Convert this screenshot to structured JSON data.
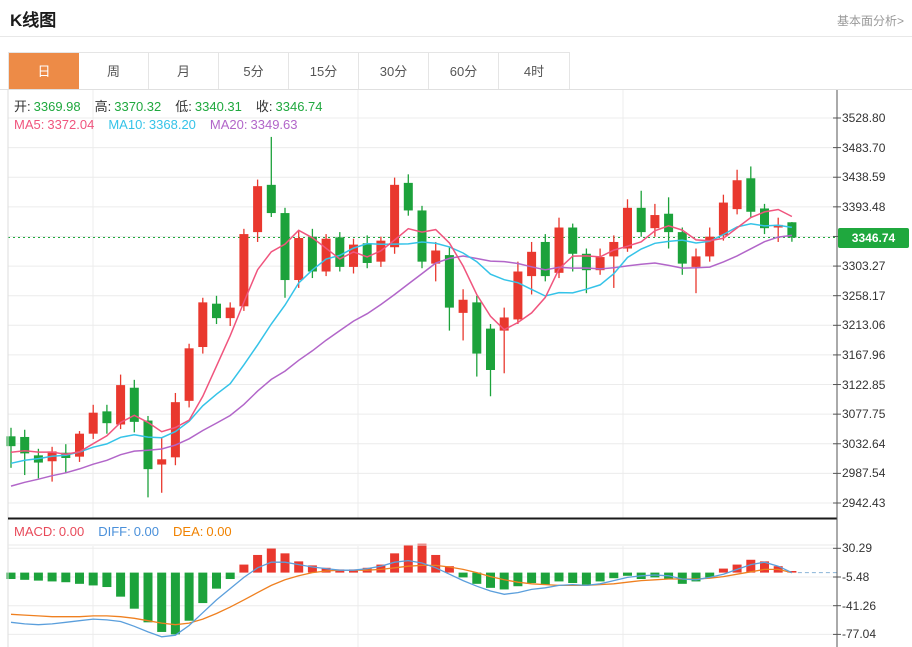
{
  "header": {
    "title": "K线图",
    "link": "基本面分析>"
  },
  "tabs": {
    "items": [
      "日",
      "周",
      "月",
      "5分",
      "15分",
      "30分",
      "60分",
      "4时"
    ],
    "active_index": 0
  },
  "ohlc_legend": [
    {
      "label": "开:",
      "value": "3369.98"
    },
    {
      "label": "高:",
      "value": "3370.32"
    },
    {
      "label": "低:",
      "value": "3340.31"
    },
    {
      "label": "收:",
      "value": "3346.74"
    }
  ],
  "ma_legend": [
    {
      "label": "MA5:",
      "value": "3372.04",
      "color": "#f0557e"
    },
    {
      "label": "MA10:",
      "value": "3368.20",
      "color": "#35c3e8"
    },
    {
      "label": "MA20:",
      "value": "3349.63",
      "color": "#b266c9"
    }
  ],
  "macd_legend": [
    {
      "label": "MACD:",
      "value": "0.00",
      "color": "#e84a5a"
    },
    {
      "label": "DIFF:",
      "value": "0.00",
      "color": "#4a90da"
    },
    {
      "label": "DEA:",
      "value": "0.00",
      "color": "#f08200"
    }
  ],
  "price_axis": {
    "labels": [
      "3528.80",
      "3483.70",
      "3438.59",
      "3393.48",
      "3303.27",
      "3258.17",
      "3213.06",
      "3167.96",
      "3122.85",
      "3077.75",
      "3032.64",
      "2987.54",
      "2942.43"
    ],
    "current": "3346.74"
  },
  "macd_axis": {
    "labels": [
      "30.29",
      "-5.48",
      "-41.26",
      "-77.04"
    ]
  },
  "colors": {
    "up": "#e9382e",
    "down": "#1ca23b",
    "ma5": "#f0557e",
    "ma10": "#35c3e8",
    "ma20": "#b266c9",
    "diff_line": "#5b9fdc",
    "dea_line": "#ef8020",
    "tab_active": "#ed8b47",
    "price_green": "#1fa83e",
    "grid": "#ececec",
    "axis": "#555555",
    "dotted_price_line": "#21a83e",
    "dashed_zero_line": "#8ab4d8"
  },
  "chart_data": {
    "type": "candlestick+macd",
    "title": "K线图",
    "timeframe": "日",
    "legend_values": {
      "open": 3369.98,
      "high": 3370.32,
      "low": 3340.31,
      "close": 3346.74,
      "MA5": 3372.04,
      "MA10": 3368.2,
      "MA20": 3349.63,
      "MACD": 0.0,
      "DIFF": 0.0,
      "DEA": 0.0
    },
    "current_price": 3346.74,
    "y_ticks": [
      3528.8,
      3483.7,
      3438.59,
      3393.48,
      3303.27,
      3258.17,
      3213.06,
      3167.96,
      3122.85,
      3077.75,
      3032.64,
      2987.54,
      2942.43
    ],
    "macd_ticks": [
      30.29,
      -5.48,
      -41.26,
      -77.04
    ],
    "candles": [
      [
        3044,
        3057,
        2996,
        3029
      ],
      [
        3043,
        3054,
        2985,
        3018
      ],
      [
        3015,
        3025,
        2980,
        3004
      ],
      [
        3006,
        3028,
        2975,
        3021
      ],
      [
        3019,
        3032,
        2988,
        3011
      ],
      [
        3013,
        3052,
        3005,
        3048
      ],
      [
        3048,
        3092,
        3040,
        3080
      ],
      [
        3082,
        3092,
        3048,
        3064
      ],
      [
        3062,
        3138,
        3055,
        3122
      ],
      [
        3118,
        3130,
        3050,
        3066
      ],
      [
        3068,
        3075,
        2951,
        2994
      ],
      [
        3001,
        3042,
        2958,
        3009
      ],
      [
        3012,
        3110,
        3000,
        3096
      ],
      [
        3098,
        3185,
        3088,
        3178
      ],
      [
        3180,
        3255,
        3170,
        3248
      ],
      [
        3246,
        3258,
        3215,
        3224
      ],
      [
        3224,
        3248,
        3212,
        3240
      ],
      [
        3242,
        3360,
        3235,
        3352
      ],
      [
        3355,
        3435,
        3340,
        3425
      ],
      [
        3427,
        3500,
        3378,
        3384
      ],
      [
        3384,
        3392,
        3255,
        3282
      ],
      [
        3282,
        3356,
        3270,
        3346
      ],
      [
        3348,
        3360,
        3285,
        3295
      ],
      [
        3295,
        3352,
        3288,
        3345
      ],
      [
        3347,
        3355,
        3295,
        3302
      ],
      [
        3302,
        3345,
        3292,
        3336
      ],
      [
        3338,
        3350,
        3300,
        3308
      ],
      [
        3310,
        3348,
        3302,
        3342
      ],
      [
        3332,
        3438,
        3322,
        3427
      ],
      [
        3430,
        3443,
        3380,
        3388
      ],
      [
        3388,
        3395,
        3300,
        3310
      ],
      [
        3307,
        3340,
        3280,
        3327
      ],
      [
        3320,
        3332,
        3205,
        3240
      ],
      [
        3232,
        3268,
        3190,
        3252
      ],
      [
        3248,
        3258,
        3135,
        3170
      ],
      [
        3208,
        3215,
        3105,
        3145
      ],
      [
        3205,
        3240,
        3140,
        3225
      ],
      [
        3222,
        3310,
        3215,
        3295
      ],
      [
        3288,
        3340,
        3260,
        3325
      ],
      [
        3340,
        3352,
        3280,
        3288
      ],
      [
        3293,
        3377,
        3285,
        3362
      ],
      [
        3362,
        3368,
        3295,
        3322
      ],
      [
        3322,
        3330,
        3262,
        3297
      ],
      [
        3297,
        3330,
        3290,
        3317
      ],
      [
        3318,
        3350,
        3270,
        3340
      ],
      [
        3330,
        3405,
        3325,
        3392
      ],
      [
        3392,
        3418,
        3348,
        3355
      ],
      [
        3361,
        3398,
        3348,
        3381
      ],
      [
        3383,
        3408,
        3330,
        3355
      ],
      [
        3355,
        3362,
        3290,
        3307
      ],
      [
        3302,
        3330,
        3262,
        3318
      ],
      [
        3318,
        3362,
        3310,
        3348
      ],
      [
        3350,
        3412,
        3342,
        3400
      ],
      [
        3390,
        3450,
        3382,
        3434
      ],
      [
        3437,
        3455,
        3378,
        3386
      ],
      [
        3391,
        3398,
        3352,
        3361
      ],
      [
        3362,
        3377,
        3340,
        3366
      ],
      [
        3369.98,
        3370.32,
        3340.31,
        3346.74
      ]
    ],
    "macd": {
      "hist": [
        -8,
        -9,
        -10,
        -11,
        -12,
        -14,
        -16,
        -18,
        -30,
        -45,
        -62,
        -74,
        -77,
        -60,
        -38,
        -20,
        -8,
        10,
        22,
        30,
        24,
        14,
        9,
        6,
        4,
        4,
        6,
        10,
        24,
        34,
        36,
        22,
        8,
        -6,
        -14,
        -19,
        -21,
        -17,
        -13,
        -15,
        -11,
        -13,
        -15,
        -11,
        -7,
        -4,
        -8,
        -6,
        -8,
        -14,
        -11,
        -6,
        5,
        10,
        16,
        14,
        8,
        2
      ],
      "diff": [
        -62,
        -64,
        -65,
        -64,
        -62,
        -60,
        -58,
        -59,
        -61,
        -67,
        -74,
        -80,
        -78,
        -66,
        -50,
        -34,
        -20,
        -6,
        6,
        13,
        13,
        10,
        7,
        5,
        3,
        3,
        5,
        8,
        13,
        15,
        12,
        6,
        -2,
        -10,
        -17,
        -23,
        -27,
        -25,
        -21,
        -19,
        -16,
        -15,
        -16,
        -14,
        -10,
        -6,
        -4,
        -3,
        -4,
        -8,
        -9,
        -6,
        -2,
        4,
        10,
        13,
        8,
        0
      ],
      "dea": [
        -52,
        -53,
        -54,
        -55,
        -55,
        -55,
        -54,
        -54,
        -55,
        -57,
        -60,
        -63,
        -65,
        -63,
        -58,
        -51,
        -43,
        -34,
        -25,
        -16,
        -9,
        -4,
        0,
        2,
        3,
        3,
        3,
        4,
        6,
        8,
        9,
        9,
        7,
        4,
        0,
        -5,
        -9,
        -12,
        -14,
        -15,
        -16,
        -16,
        -16,
        -15,
        -14,
        -12,
        -10,
        -9,
        -8,
        -8,
        -8,
        -7,
        -5,
        -2,
        1,
        4,
        4,
        0
      ]
    }
  }
}
